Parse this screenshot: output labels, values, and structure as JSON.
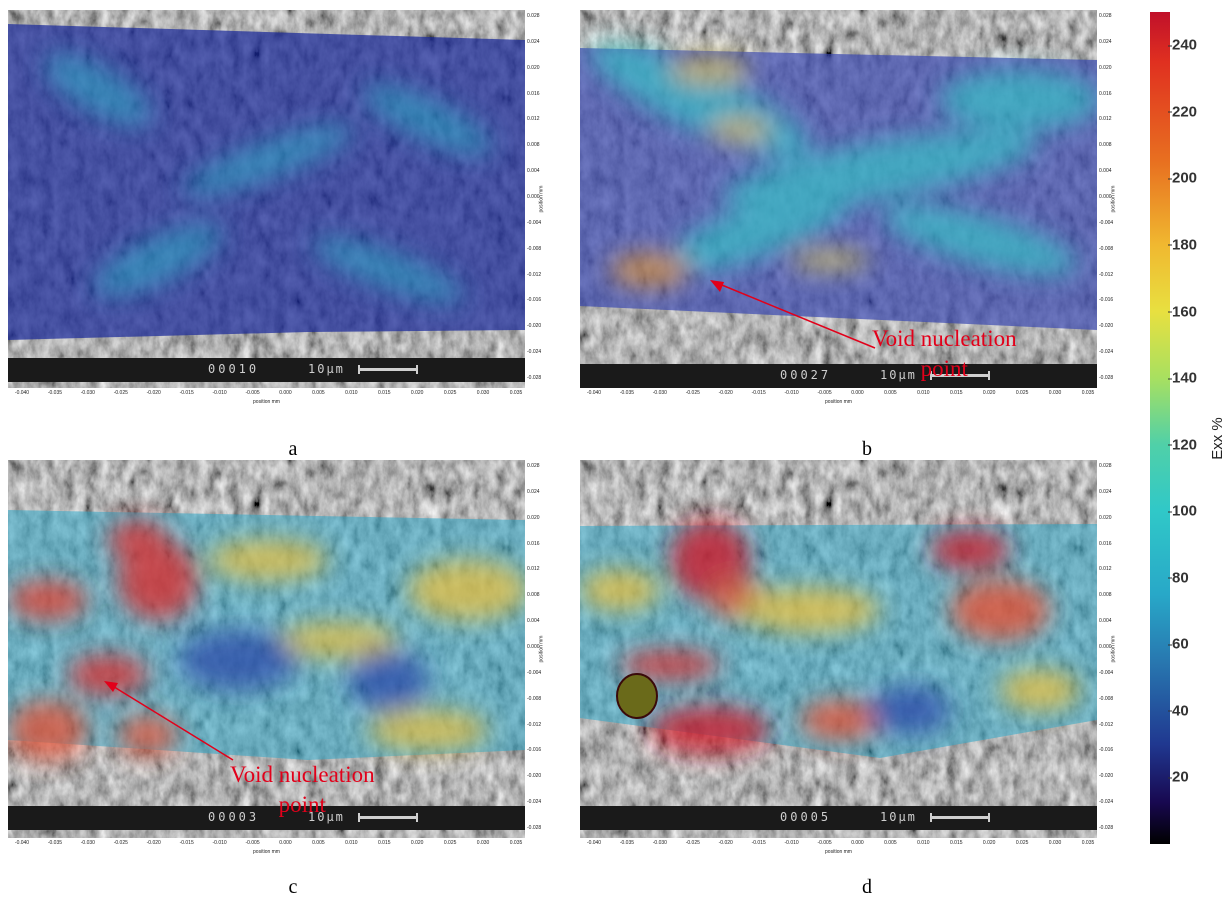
{
  "figure": {
    "colorbar": {
      "label": "Exx %",
      "ticks": [
        "240",
        "220",
        "200",
        "180",
        "160",
        "140",
        "120",
        "100",
        "80",
        "60",
        "40",
        "20"
      ],
      "max": 250,
      "min": 0
    },
    "axis": {
      "x_unit": "position mm",
      "y_unit": "position mm",
      "x_ticks": [
        "-0.040",
        "-0.035",
        "-0.030",
        "-0.025",
        "-0.020",
        "-0.015",
        "-0.010",
        "-0.005",
        "0.000",
        "0.005",
        "0.010",
        "0.015",
        "0.020",
        "0.025",
        "0.030",
        "0.035"
      ],
      "y_ticks": [
        "0.028",
        "0.024",
        "0.020",
        "0.016",
        "0.012",
        "0.008",
        "0.004",
        "0.000",
        "-0.004",
        "-0.008",
        "-0.012",
        "-0.016",
        "-0.020",
        "-0.024",
        "-0.028"
      ]
    },
    "scale_text": "10μm",
    "panels": [
      {
        "caption": "a",
        "frame": "00010"
      },
      {
        "caption": "b",
        "frame": "00027",
        "annotation_line1": "Void nucleation",
        "annotation_line2": "point"
      },
      {
        "caption": "c",
        "frame": "00003",
        "annotation_line1": "Void nucleation",
        "annotation_line2": "point"
      },
      {
        "caption": "d",
        "frame": "00005"
      }
    ],
    "colors": {
      "annotation": "#e2001a"
    }
  }
}
